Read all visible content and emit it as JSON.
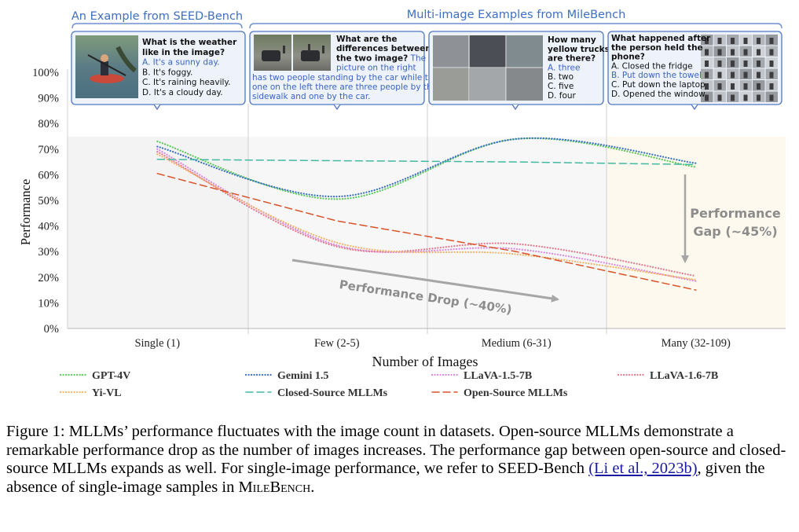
{
  "headers": {
    "left": "An Example from SEED-Bench",
    "right": "Multi-image Examples from MileBench"
  },
  "examples": [
    {
      "question": [
        "What is the weather",
        "like in the image?"
      ],
      "options": [
        "A. It's a sunny day.",
        "B. It's foggy.",
        "C. It's raining heavily.",
        "D. It's a cloudy day."
      ],
      "answer_index": 0
    },
    {
      "question": [
        "What are the",
        "differences between",
        "the two image?"
      ],
      "answer_lines": [
        "The",
        "picture on the right",
        "has two people standing by the car while the",
        "one on the left there are three people by the",
        "sidewalk and one by the car."
      ]
    },
    {
      "question": [
        "How many",
        "yellow trucks",
        "are there?"
      ],
      "options": [
        "A. three",
        "B. two",
        "C. five",
        "D. four"
      ],
      "answer_index": 0
    },
    {
      "question": [
        "What happened after",
        "the person held the",
        "phone?"
      ],
      "options": [
        "A. Closed the fridge",
        "B. Put down the towel",
        "C. Put down the laptop",
        "D. Opened the window"
      ],
      "answer_index": 1
    }
  ],
  "chart_data": {
    "type": "line",
    "categories": [
      "Single (1)",
      "Few (2-5)",
      "Medium (6-31)",
      "Many (32-109)"
    ],
    "xlabel": "Number of  Images",
    "ylabel": "Performance",
    "yticks": [
      "0%",
      "10%",
      "20%",
      "30%",
      "40%",
      "50%",
      "60%",
      "70%",
      "80%",
      "90%",
      "100%"
    ],
    "ylim": [
      0,
      100
    ],
    "series": [
      {
        "name": "GPT-4V",
        "color": "#5cc85c",
        "style": "dotted",
        "values": [
          73,
          50.5,
          74,
          63
        ]
      },
      {
        "name": "Gemini 1.5",
        "color": "#3b6fc4",
        "style": "dotted",
        "values": [
          71,
          51.5,
          74,
          64.5
        ]
      },
      {
        "name": "LLaVA-1.5-7B",
        "color": "#d98ae0",
        "style": "dotted",
        "values": [
          70,
          32.5,
          31,
          18.5
        ]
      },
      {
        "name": "LLaVA-1.6-7B",
        "color": "#e47a8e",
        "style": "dotted",
        "values": [
          69,
          32,
          33,
          20.5
        ]
      },
      {
        "name": "Yi-VL",
        "color": "#f2b36b",
        "style": "dotted",
        "values": [
          68,
          33.5,
          29,
          19
        ]
      },
      {
        "name": "Closed-Source MLLMs",
        "color": "#43b9a0",
        "style": "dashed",
        "values": [
          66,
          65.5,
          65,
          64
        ]
      },
      {
        "name": "Open-Source MLLMs",
        "color": "#d9532a",
        "style": "dashed",
        "values": [
          60.5,
          42,
          30,
          15
        ]
      }
    ],
    "annotations": {
      "drop": "Performance Drop (~40%)",
      "gap_line1": "Performance",
      "gap_line2": "Gap (~45%)"
    },
    "legend_position": "bottom"
  },
  "caption": {
    "main_1": "Figure 1: MLLMs’ performance fluctuates with the image count in datasets. Open-source MLLMs demonstrate a remarkable performance drop as the number of images increases. The performance gap between open-source and closed-source MLLMs expands as well. For single-image performance, we refer to SEED-Bench ",
    "citation": "(Li et al., 2023b)",
    "main_2": ", given the absence of single-image samples in ",
    "benchmark": "MileBench",
    "end": "."
  }
}
